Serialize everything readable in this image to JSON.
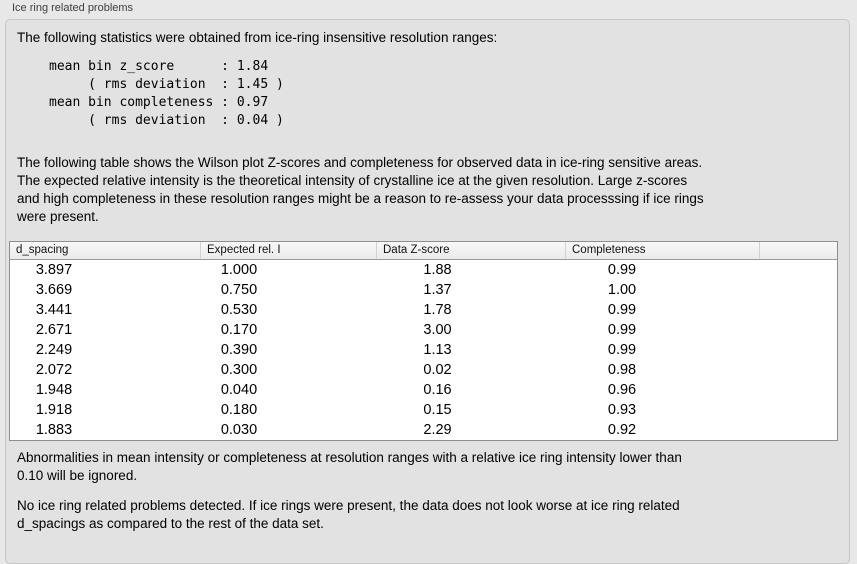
{
  "panel": {
    "title": "Ice ring related problems"
  },
  "intro": "The following statistics were obtained from ice-ring insensitive resolution ranges:",
  "stats": {
    "text": "mean bin z_score      : 1.84\n     ( rms deviation  : 1.45 )\nmean bin completeness : 0.97\n     ( rms deviation  : 0.04 )",
    "mean_bin_z_score": "1.84",
    "z_score_rms_deviation": "1.45",
    "mean_bin_completeness": "0.97",
    "completeness_rms_deviation": "0.04"
  },
  "table_description": "The following table shows the Wilson plot Z-scores and completeness for observed data in ice-ring sensitive areas.\nThe expected relative intensity is the theoretical intensity of crystalline ice at the given resolution. Large z-scores\nand high completeness in these resolution ranges might be a reason to re-assess your data processsing if ice rings\nwere present.",
  "table": {
    "headers": [
      "d_spacing",
      "Expected rel. I",
      "Data Z-score",
      "Completeness",
      ""
    ],
    "rows": [
      [
        "3.897",
        "1.000",
        "1.88",
        "0.99"
      ],
      [
        "3.669",
        "0.750",
        "1.37",
        "1.00"
      ],
      [
        "3.441",
        "0.530",
        "1.78",
        "0.99"
      ],
      [
        "2.671",
        "0.170",
        "3.00",
        "0.99"
      ],
      [
        "2.249",
        "0.390",
        "1.13",
        "0.99"
      ],
      [
        "2.072",
        "0.300",
        "0.02",
        "0.98"
      ],
      [
        "1.948",
        "0.040",
        "0.16",
        "0.96"
      ],
      [
        "1.918",
        "0.180",
        "0.15",
        "0.93"
      ],
      [
        "1.883",
        "0.030",
        "2.29",
        "0.92"
      ]
    ]
  },
  "ignore_note": "Abnormalities in mean intensity or completeness at resolution ranges with a relative ice ring intensity lower than\n0.10 will be ignored.",
  "conclusion": "No ice ring related problems detected. If ice rings were present, the data does not look worse at ice ring related\nd_spacings as compared to the rest of the data set."
}
